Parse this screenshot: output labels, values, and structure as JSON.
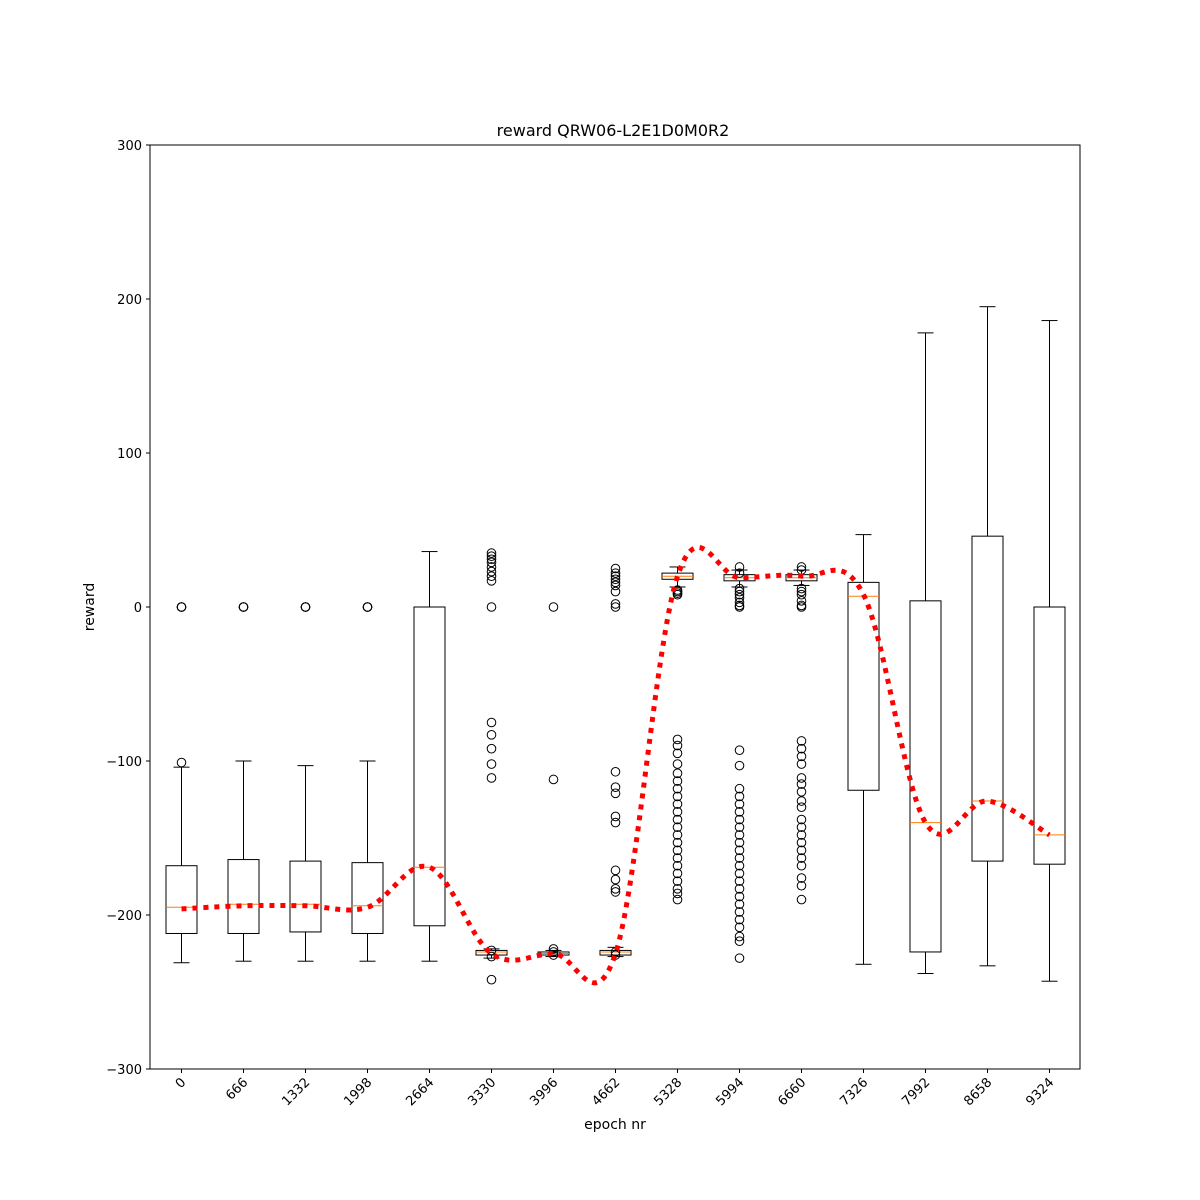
{
  "chart_data": {
    "type": "box",
    "title": "reward QRW06-L2E1D0M0R2",
    "xlabel": "epoch nr",
    "ylabel": "reward",
    "ylim": [
      -300,
      300
    ],
    "yticks": [
      -300,
      -200,
      -100,
      0,
      100,
      200,
      300
    ],
    "yticks_labels": [
      "−300",
      "−200",
      "−100",
      "0",
      "100",
      "200",
      "300"
    ],
    "grid": false,
    "categories": [
      "0",
      "666",
      "1332",
      "1998",
      "2664",
      "3330",
      "3996",
      "4662",
      "5328",
      "5994",
      "6660",
      "7326",
      "7992",
      "8658",
      "9324"
    ],
    "boxes": [
      {
        "q1": -212,
        "median": -195,
        "q3": -168,
        "whisker_low": -231,
        "whisker_high": -104,
        "outliers": [
          0,
          0,
          0,
          -101
        ]
      },
      {
        "q1": -212,
        "median": -193,
        "q3": -164,
        "whisker_low": -230,
        "whisker_high": -100,
        "outliers": [
          0,
          0,
          0
        ]
      },
      {
        "q1": -211,
        "median": -193,
        "q3": -165,
        "whisker_low": -230,
        "whisker_high": -103,
        "outliers": [
          0,
          0,
          0
        ]
      },
      {
        "q1": -212,
        "median": -194,
        "q3": -166,
        "whisker_low": -230,
        "whisker_high": -100,
        "outliers": [
          0,
          0,
          0
        ]
      },
      {
        "q1": -207,
        "median": -169,
        "q3": 0,
        "whisker_low": -230,
        "whisker_high": 36,
        "outliers": []
      },
      {
        "q1": -226,
        "median": -224,
        "q3": -223,
        "whisker_low": -228,
        "whisker_high": -222,
        "outliers": [
          35,
          33,
          31,
          29,
          26,
          23,
          20,
          17,
          0,
          -75,
          -83,
          -92,
          -102,
          -111,
          -223,
          -227,
          -242
        ]
      },
      {
        "q1": -226,
        "median": -225,
        "q3": -224,
        "whisker_low": -227,
        "whisker_high": -223,
        "outliers": [
          0,
          -112,
          -222,
          -224,
          -226
        ]
      },
      {
        "q1": -226,
        "median": -224,
        "q3": -223,
        "whisker_low": -227,
        "whisker_high": -221,
        "outliers": [
          25,
          22,
          20,
          18,
          16,
          14,
          10,
          2,
          0,
          -107,
          -117,
          -121,
          -136,
          -140,
          -171,
          -177,
          -183,
          -185,
          -224,
          -226
        ]
      },
      {
        "q1": 18,
        "median": 20,
        "q3": 22,
        "whisker_low": 13,
        "whisker_high": 26,
        "outliers": [
          11,
          10,
          9,
          8,
          -86,
          -90,
          -95,
          -102,
          -108,
          -113,
          -118,
          -123,
          -128,
          -133,
          -138,
          -143,
          -148,
          -153,
          -158,
          -163,
          -168,
          -173,
          -178,
          -183,
          -186,
          -190
        ]
      },
      {
        "q1": 17,
        "median": 19,
        "q3": 21,
        "whisker_low": 13,
        "whisker_high": 24,
        "outliers": [
          26,
          22,
          12,
          10,
          8,
          6,
          3,
          1,
          0,
          -93,
          -103,
          -118,
          -123,
          -128,
          -133,
          -138,
          -143,
          -148,
          -153,
          -158,
          -163,
          -168,
          -173,
          -178,
          -183,
          -188,
          -193,
          -198,
          -203,
          -208,
          -214,
          -217,
          -228
        ]
      },
      {
        "q1": 17,
        "median": 19,
        "q3": 21,
        "whisker_low": 14,
        "whisker_high": 24,
        "outliers": [
          26,
          24,
          12,
          10,
          8,
          4,
          1,
          0,
          -87,
          -92,
          -97,
          -102,
          -111,
          -115,
          -120,
          -126,
          -130,
          -138,
          -143,
          -148,
          -153,
          -158,
          -163,
          -168,
          -176,
          -181,
          -190
        ]
      },
      {
        "q1": -119,
        "median": 7,
        "q3": 16,
        "whisker_low": -232,
        "whisker_high": 47,
        "outliers": []
      },
      {
        "q1": -224,
        "median": -140,
        "q3": 4,
        "whisker_low": -238,
        "whisker_high": 178,
        "outliers": []
      },
      {
        "q1": -165,
        "median": -126,
        "q3": 46,
        "whisker_low": -233,
        "whisker_high": 195,
        "outliers": []
      },
      {
        "q1": -167,
        "median": -148,
        "q3": 0,
        "whisker_low": -243,
        "whisker_high": 186,
        "outliers": []
      }
    ],
    "trend_line": {
      "values": [
        -196,
        -194,
        -194,
        -195,
        -169,
        -225,
        -225,
        -225,
        20,
        19,
        20,
        8,
        -140,
        -126,
        -148
      ],
      "color": "#ff0000",
      "style": "dotted"
    },
    "colors": {
      "box": "#000000",
      "median": "#ff7f0e",
      "trend": "#ff0000"
    }
  }
}
